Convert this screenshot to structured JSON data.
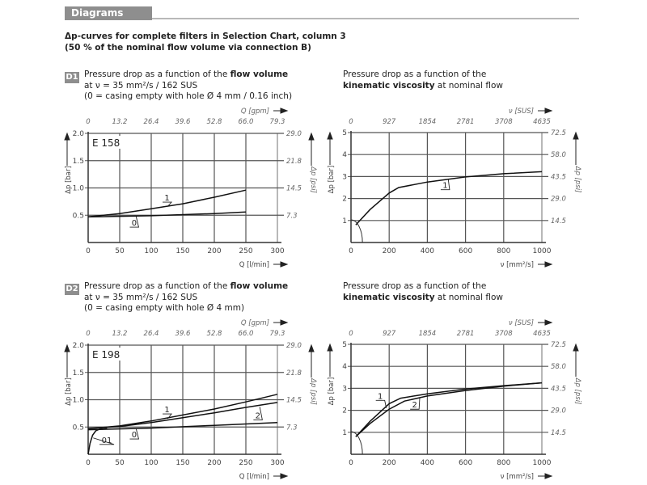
{
  "section": {
    "title": "Diagrams"
  },
  "intro": {
    "line1": "Δp-curves for complete filters in Selection Chart, column 3",
    "line2": "(50 % of the nominal flow volume via connection B)"
  },
  "panels": [
    {
      "badge": "D1",
      "left_desc": {
        "pre": "Pressure drop as a function of the ",
        "bold": "flow volume",
        "line2": "at ν = 35 mm²/s / 162 SUS",
        "line3": "(0 = casing empty with hole Ø 4 mm / 0.16 inch)"
      },
      "right_desc": {
        "line1": "Pressure drop as a function of the",
        "bold": "kinematic viscosity",
        "post": " at nominal flow"
      }
    },
    {
      "badge": "D2",
      "left_desc": {
        "pre": "Pressure drop as a function of the ",
        "bold": "flow volume",
        "line2": "at ν = 35 mm²/s / 162 SUS",
        "line3": "(0 = casing empty with hole Ø 4 mm)"
      },
      "right_desc": {
        "line1": "Pressure drop as a function of the",
        "bold": "kinematic viscosity",
        "post": " at nominal flow"
      }
    }
  ],
  "chart_data": [
    {
      "id": "d1-flow",
      "type": "line",
      "model": "E 158",
      "xlabel": "Q [l/min]",
      "x2label": "Q [gpm]",
      "ylabel": "Δp [bar]",
      "y2label": "Δp [psi]",
      "xlim": [
        0,
        300
      ],
      "ylim": [
        0,
        2.0
      ],
      "xticks": [
        "0",
        "50",
        "100",
        "150",
        "200",
        "250",
        "300"
      ],
      "x2ticks": [
        "0",
        "13.2",
        "26.4",
        "39.6",
        "52.8",
        "66.0",
        "79.3"
      ],
      "yticks": [
        {
          "v": 0.5,
          "t": "0.5"
        },
        {
          "v": 1.0,
          "t": "1.0"
        },
        {
          "v": 1.5,
          "t": "1.5"
        },
        {
          "v": 2.0,
          "t": "2.0"
        }
      ],
      "y2ticks": [
        "7.3",
        "14.5",
        "21.8",
        "29.0"
      ],
      "series": [
        {
          "name": "1",
          "x": [
            0,
            50,
            100,
            150,
            200,
            250
          ],
          "y": [
            0.47,
            0.53,
            0.62,
            0.71,
            0.83,
            0.96
          ],
          "label_at": [
            118,
            0.74
          ],
          "label_to": [
            126,
            0.66
          ]
        },
        {
          "name": "0",
          "x": [
            0,
            100,
            200,
            250
          ],
          "y": [
            0.47,
            0.49,
            0.53,
            0.56
          ],
          "label_at": [
            66,
            0.28
          ],
          "label_to": [
            76,
            0.48
          ]
        }
      ]
    },
    {
      "id": "d1-visc",
      "type": "line",
      "xlabel": "ν [mm²/s]",
      "x2label": "ν [SUS]",
      "ylabel": "Δp [bar]",
      "y2label": "Δp [psi]",
      "xlim": [
        0,
        1000
      ],
      "ylim": [
        0,
        5
      ],
      "xticks": [
        "0",
        "200",
        "400",
        "600",
        "800",
        "1000"
      ],
      "x2ticks": [
        "0",
        "927",
        "1854",
        "2781",
        "3708",
        "4635"
      ],
      "yticks": [
        {
          "v": 1,
          "t": "1"
        },
        {
          "v": 2,
          "t": "2"
        },
        {
          "v": 3,
          "t": "3"
        },
        {
          "v": 4,
          "t": "4"
        },
        {
          "v": 5,
          "t": "5"
        }
      ],
      "y2ticks": [
        "14.5",
        "29.0",
        "43.5",
        "58.0",
        "72.5"
      ],
      "series": [
        {
          "name": "1",
          "x": [
            25,
            100,
            200,
            250,
            400,
            600,
            800,
            1000
          ],
          "y": [
            0.8,
            1.5,
            2.25,
            2.5,
            2.75,
            2.98,
            3.13,
            3.22
          ],
          "label_at": [
            470,
            2.4
          ],
          "label_to": [
            510,
            2.85
          ]
        }
      ]
    },
    {
      "id": "d2-flow",
      "type": "line",
      "model": "E 198",
      "xlabel": "Q [l/min]",
      "x2label": "Q [gpm]",
      "ylabel": "Δp [bar]",
      "y2label": "Δp [psi]",
      "xlim": [
        0,
        300
      ],
      "ylim": [
        0,
        2.0
      ],
      "xticks": [
        "0",
        "50",
        "100",
        "150",
        "200",
        "250",
        "300"
      ],
      "x2ticks": [
        "0",
        "13.2",
        "26.4",
        "39.6",
        "52.8",
        "66.0",
        "79.3"
      ],
      "yticks": [
        {
          "v": 0.5,
          "t": "0.5"
        },
        {
          "v": 1.0,
          "t": "1.0"
        },
        {
          "v": 1.5,
          "t": "1.5"
        },
        {
          "v": 2.0,
          "t": "2.0"
        }
      ],
      "y2ticks": [
        "7.3",
        "14.5",
        "21.8",
        "29.0"
      ],
      "series": [
        {
          "name": "1",
          "x": [
            0,
            50,
            100,
            150,
            200,
            250,
            300
          ],
          "y": [
            0.47,
            0.52,
            0.61,
            0.72,
            0.83,
            0.96,
            1.1
          ],
          "label_at": [
            118,
            0.74
          ],
          "label_to": [
            126,
            0.65
          ]
        },
        {
          "name": "2",
          "x": [
            0,
            50,
            100,
            150,
            200,
            250,
            300
          ],
          "y": [
            0.47,
            0.51,
            0.58,
            0.67,
            0.76,
            0.86,
            0.95
          ],
          "label_at": [
            262,
            0.63
          ],
          "label_to": [
            272,
            0.87
          ]
        },
        {
          "name": "0",
          "x": [
            0,
            100,
            200,
            300
          ],
          "y": [
            0.45,
            0.48,
            0.53,
            0.58
          ],
          "label_at": [
            66,
            0.28
          ],
          "label_to": [
            76,
            0.47
          ]
        },
        {
          "name": "01",
          "x": [
            0,
            3,
            7,
            12,
            18,
            30
          ],
          "y": [
            0,
            0.2,
            0.35,
            0.43,
            0.46,
            0.47
          ],
          "label_at": [
            18,
            0.18
          ],
          "label_to": [
            8,
            0.3
          ]
        }
      ]
    },
    {
      "id": "d2-visc",
      "type": "line",
      "xlabel": "ν [mm²/s]",
      "x2label": "ν [SUS]",
      "ylabel": "Δp [bar]",
      "y2label": "Δp [psi]",
      "xlim": [
        0,
        1000
      ],
      "ylim": [
        0,
        5
      ],
      "xticks": [
        "0",
        "200",
        "400",
        "600",
        "800",
        "1000"
      ],
      "x2ticks": [
        "0",
        "927",
        "1854",
        "2781",
        "3708",
        "4635"
      ],
      "yticks": [
        {
          "v": 1,
          "t": "1"
        },
        {
          "v": 2,
          "t": "2"
        },
        {
          "v": 3,
          "t": "3"
        },
        {
          "v": 4,
          "t": "4"
        },
        {
          "v": 5,
          "t": "5"
        }
      ],
      "y2ticks": [
        "14.5",
        "29.0",
        "43.5",
        "58.0",
        "72.5"
      ],
      "series": [
        {
          "name": "1",
          "x": [
            25,
            100,
            200,
            260,
            400,
            600,
            800,
            1000
          ],
          "y": [
            0.8,
            1.5,
            2.3,
            2.55,
            2.75,
            2.97,
            3.12,
            3.25
          ],
          "label_at": [
            130,
            2.45
          ],
          "label_to": [
            185,
            2.1
          ]
        },
        {
          "name": "2",
          "x": [
            25,
            100,
            200,
            280,
            400,
            600,
            800,
            1000
          ],
          "y": [
            0.8,
            1.4,
            2.05,
            2.42,
            2.65,
            2.9,
            3.1,
            3.25
          ],
          "label_at": [
            310,
            2.05
          ],
          "label_to": [
            360,
            2.55
          ]
        }
      ]
    }
  ]
}
